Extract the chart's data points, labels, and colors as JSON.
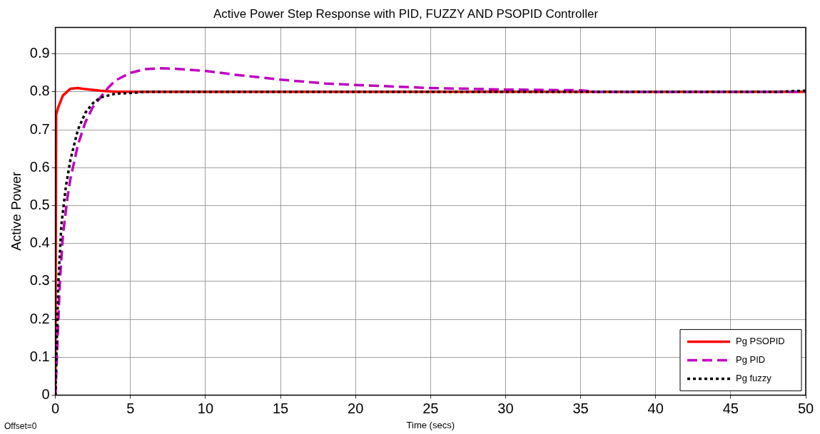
{
  "chart_data": {
    "type": "line",
    "title": "Active Power Step Response with PID, FUZZY AND PSOPID Controller",
    "xlabel": "Time (secs)",
    "ylabel": "Active Power",
    "annotations": [
      "Offset=0"
    ],
    "xlim": [
      0,
      50
    ],
    "xticks": [
      0,
      5,
      10,
      15,
      20,
      25,
      30,
      35,
      40,
      45,
      50
    ],
    "ylim": [
      0,
      0.97
    ],
    "yticks": [
      0,
      0.1,
      0.2,
      0.3,
      0.4,
      0.5,
      0.6,
      0.7,
      0.8,
      0.9
    ],
    "grid": true,
    "legend": "bottom right",
    "marker": "none",
    "series": [
      {
        "name": "Pg PSOPID",
        "color": "#ff0000",
        "line_style": "solid",
        "x": [
          0,
          0.05,
          0.2,
          0.5,
          1,
          1.5,
          2,
          3,
          4,
          50
        ],
        "values": [
          0,
          0.74,
          0.76,
          0.79,
          0.808,
          0.81,
          0.807,
          0.803,
          0.8,
          0.8
        ]
      },
      {
        "name": "Pg PID",
        "color": "#c000c0",
        "line_style": "dashed",
        "x": [
          0,
          0.15,
          0.3,
          0.5,
          0.8,
          1,
          1.5,
          2,
          2.5,
          3,
          3.5,
          4,
          5,
          6,
          7,
          8,
          10,
          12,
          15,
          18,
          20,
          25,
          30,
          35,
          36,
          50
        ],
        "values": [
          0,
          0.15,
          0.3,
          0.42,
          0.52,
          0.57,
          0.66,
          0.72,
          0.76,
          0.785,
          0.81,
          0.83,
          0.85,
          0.86,
          0.862,
          0.861,
          0.855,
          0.845,
          0.832,
          0.822,
          0.818,
          0.81,
          0.806,
          0.804,
          0.8,
          0.8
        ]
      },
      {
        "name": "Pg fuzzy",
        "color": "#000000",
        "line_style": "dotted",
        "x": [
          0,
          0.1,
          0.2,
          0.4,
          0.7,
          1,
          1.5,
          2,
          2.5,
          3,
          4,
          5,
          6,
          48,
          50
        ],
        "values": [
          0,
          0.15,
          0.3,
          0.45,
          0.55,
          0.62,
          0.7,
          0.745,
          0.77,
          0.785,
          0.795,
          0.797,
          0.8,
          0.8,
          0.803
        ]
      }
    ]
  }
}
